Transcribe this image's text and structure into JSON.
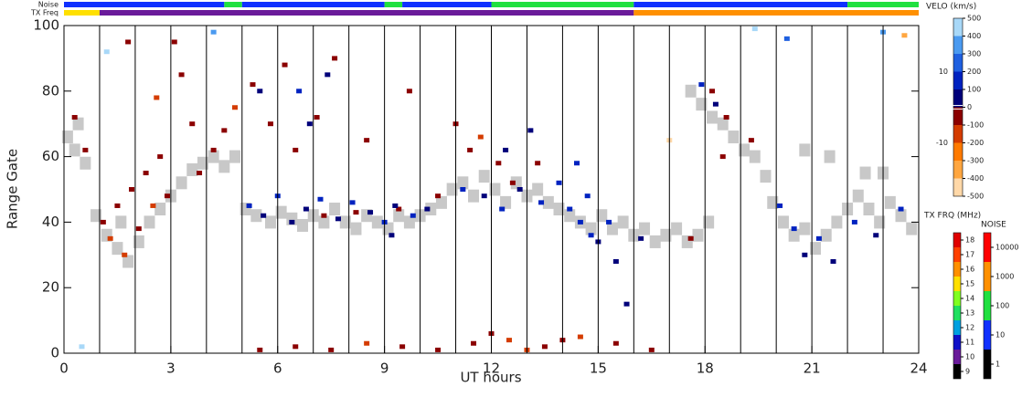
{
  "chart_data": {
    "type": "range-time",
    "xlabel": "UT hours",
    "ylabel": "Range Gate",
    "xlim": [
      0,
      24
    ],
    "xticks": [
      0,
      3,
      6,
      9,
      12,
      15,
      18,
      21,
      24
    ],
    "ylim": [
      0,
      100
    ],
    "yticks": [
      0,
      20,
      40,
      60,
      80,
      100
    ],
    "hour_lines": [
      1,
      2,
      3,
      4,
      5,
      6,
      7,
      8,
      9,
      10,
      11,
      12,
      13,
      14,
      15,
      16,
      17,
      18,
      19,
      20,
      21,
      22,
      23
    ],
    "ground_color": "#c8c8c8",
    "ground_cells": {
      "ut": [
        0.1,
        0.3,
        0.4,
        0.6,
        0.9,
        1.2,
        1.5,
        1.8,
        1.6,
        2.1,
        2.4,
        2.7,
        3.0,
        3.3,
        3.6,
        3.9,
        4.2,
        4.5,
        4.8,
        5.1,
        5.4,
        5.8,
        6.1,
        6.4,
        6.7,
        7.0,
        7.3,
        7.6,
        7.9,
        8.2,
        8.5,
        8.8,
        9.1,
        9.4,
        9.7,
        10.0,
        10.3,
        10.6,
        10.9,
        11.2,
        11.5,
        11.8,
        12.1,
        12.4,
        12.7,
        13.0,
        13.3,
        13.6,
        13.9,
        14.2,
        14.5,
        14.8,
        15.1,
        15.4,
        15.7,
        16.0,
        16.3,
        16.6,
        16.9,
        17.2,
        17.5,
        17.8,
        18.1,
        17.6,
        17.9,
        18.2,
        18.5,
        18.8,
        19.1,
        19.4,
        19.7,
        19.9,
        20.2,
        20.5,
        20.8,
        21.1,
        21.4,
        21.7,
        22.0,
        22.3,
        22.6,
        22.9,
        23.2,
        23.5,
        23.8,
        22.5,
        20.8,
        21.5,
        23.0
      ],
      "gate": [
        66,
        62,
        70,
        58,
        42,
        36,
        32,
        28,
        40,
        34,
        40,
        44,
        48,
        52,
        56,
        58,
        60,
        57,
        60,
        44,
        42,
        40,
        43,
        41,
        39,
        42,
        40,
        44,
        40,
        38,
        42,
        40,
        38,
        42,
        40,
        42,
        44,
        46,
        50,
        52,
        48,
        54,
        50,
        46,
        52,
        48,
        50,
        46,
        44,
        42,
        40,
        38,
        42,
        38,
        40,
        36,
        38,
        34,
        36,
        38,
        34,
        36,
        40,
        80,
        76,
        72,
        70,
        66,
        62,
        60,
        54,
        46,
        40,
        36,
        38,
        32,
        36,
        40,
        44,
        48,
        44,
        40,
        46,
        42,
        38,
        55,
        62,
        60,
        55
      ]
    },
    "velocity_cells": {
      "ut": [
        1.1,
        1.3,
        1.5,
        1.7,
        1.9,
        2.1,
        2.3,
        2.5,
        2.7,
        2.9,
        3.1,
        3.3,
        2.6,
        3.6,
        3.8,
        4.2,
        4.5,
        0.3,
        0.6,
        1.8,
        4.8,
        5.3,
        5.8,
        6.2,
        6.5,
        7.1,
        7.6,
        8.5,
        9.7,
        11.0,
        11.4,
        11.7,
        12.2,
        12.6,
        13.3,
        10.5,
        9.4,
        8.2,
        7.3,
        18.2,
        18.6,
        19.3,
        17.6,
        18.5,
        5.2,
        5.6,
        6.0,
        6.4,
        6.8,
        7.2,
        7.7,
        8.1,
        8.6,
        9.0,
        9.3,
        9.8,
        10.2,
        11.2,
        11.8,
        12.3,
        12.8,
        13.4,
        13.9,
        14.2,
        14.5,
        14.8,
        15.0,
        15.3,
        14.7,
        15.5,
        16.2,
        6.6,
        6.9,
        7.4,
        5.5,
        17.9,
        18.3,
        20.1,
        20.5,
        20.8,
        21.2,
        21.6,
        22.2,
        22.8,
        23.5,
        12.4,
        13.1,
        14.4,
        9.2,
        15.8,
        5.5,
        6.5,
        7.5,
        8.5,
        9.5,
        10.5,
        11.5,
        12.5,
        13.5,
        14.5,
        15.5,
        16.5,
        12,
        13,
        14,
        19.4,
        23.0,
        1.2,
        4.2,
        0.5,
        20.3,
        17.0,
        23.6
      ],
      "gate": [
        40,
        35,
        45,
        30,
        50,
        38,
        55,
        45,
        60,
        48,
        95,
        85,
        78,
        70,
        55,
        62,
        68,
        72,
        62,
        95,
        75,
        82,
        70,
        88,
        62,
        72,
        90,
        65,
        80,
        70,
        62,
        66,
        58,
        52,
        58,
        48,
        44,
        43,
        42,
        80,
        72,
        65,
        35,
        60,
        45,
        42,
        48,
        40,
        44,
        47,
        41,
        46,
        43,
        40,
        45,
        42,
        44,
        50,
        48,
        44,
        50,
        46,
        52,
        44,
        40,
        36,
        34,
        40,
        48,
        28,
        35,
        80,
        70,
        85,
        80,
        82,
        76,
        45,
        38,
        30,
        35,
        28,
        40,
        36,
        44,
        62,
        68,
        58,
        36,
        15,
        1,
        2,
        1,
        3,
        2,
        1,
        3,
        4,
        2,
        5,
        3,
        1,
        6,
        1,
        4,
        99,
        98,
        92,
        98,
        2,
        96,
        65,
        97
      ],
      "velocity": [
        -80,
        -150,
        -60,
        -120,
        -40,
        -90,
        -70,
        -110,
        -50,
        -80,
        -60,
        -90,
        -130,
        -70,
        -100,
        -80,
        -60,
        -90,
        -70,
        -80,
        -120,
        -70,
        -90,
        -60,
        -100,
        -80,
        -50,
        -90,
        -60,
        -90,
        -70,
        -110,
        -60,
        -80,
        -90,
        -70,
        -80,
        -100,
        -60,
        -90,
        -60,
        -80,
        -70,
        -100,
        120,
        80,
        150,
        90,
        60,
        110,
        70,
        130,
        90,
        150,
        70,
        100,
        60,
        110,
        80,
        140,
        90,
        120,
        160,
        100,
        180,
        120,
        90,
        140,
        130,
        80,
        60,
        100,
        80,
        60,
        90,
        120,
        90,
        100,
        140,
        80,
        120,
        90,
        110,
        70,
        100,
        90,
        70,
        100,
        60,
        80,
        -80,
        -100,
        -70,
        -120,
        -90,
        -80,
        -100,
        -130,
        -90,
        -110,
        -80,
        -70,
        -90,
        -150,
        -60,
        450,
        350,
        400,
        300,
        420,
        250,
        -450,
        -350
      ]
    },
    "noise_strip": {
      "label": "Noise",
      "start": [
        0,
        4.5,
        5,
        9,
        9.5,
        12,
        16,
        22
      ],
      "end": [
        4.5,
        5,
        9,
        9.5,
        12,
        16,
        22,
        24
      ],
      "value": [
        30,
        200,
        30,
        200,
        30,
        200,
        30,
        200
      ]
    },
    "tx_strip": {
      "label": "TX Freq",
      "start": [
        0,
        1,
        16
      ],
      "end": [
        1,
        16,
        24
      ],
      "value": [
        15.5,
        10.5,
        16.2
      ]
    },
    "velocity_scale": {
      "label": "VELO (km/s)",
      "lim": [
        -500,
        500
      ],
      "ticks": [
        500,
        400,
        300,
        200,
        100,
        0,
        -100,
        -200,
        -300,
        -400,
        -500
      ],
      "near_zero_ticks": [
        10,
        -10
      ],
      "colors": [
        "#ffd8a8",
        "#ffa640",
        "#ff7a00",
        "#d43c00",
        "#8b0000",
        "#00007a",
        "#0022c0",
        "#1f60e0",
        "#4a9af0",
        "#a8d8f8"
      ]
    },
    "freq_scale": {
      "label": "TX FRQ (MHz)",
      "ticks": [
        9,
        10,
        11,
        12,
        13,
        14,
        15,
        16,
        17,
        18
      ],
      "colors": [
        "#000000",
        "#6a1b9a",
        "#1010c8",
        "#00a0e0",
        "#20e060",
        "#80ff20",
        "#ffe000",
        "#ff9000",
        "#ff4000",
        "#e00000"
      ]
    },
    "noise_scale": {
      "label": "NOISE",
      "ticks": [
        1,
        10,
        100,
        1000,
        10000
      ],
      "colors": [
        "#000000",
        "#1030ff",
        "#20e040",
        "#ff9000",
        "#ff0000"
      ]
    }
  }
}
